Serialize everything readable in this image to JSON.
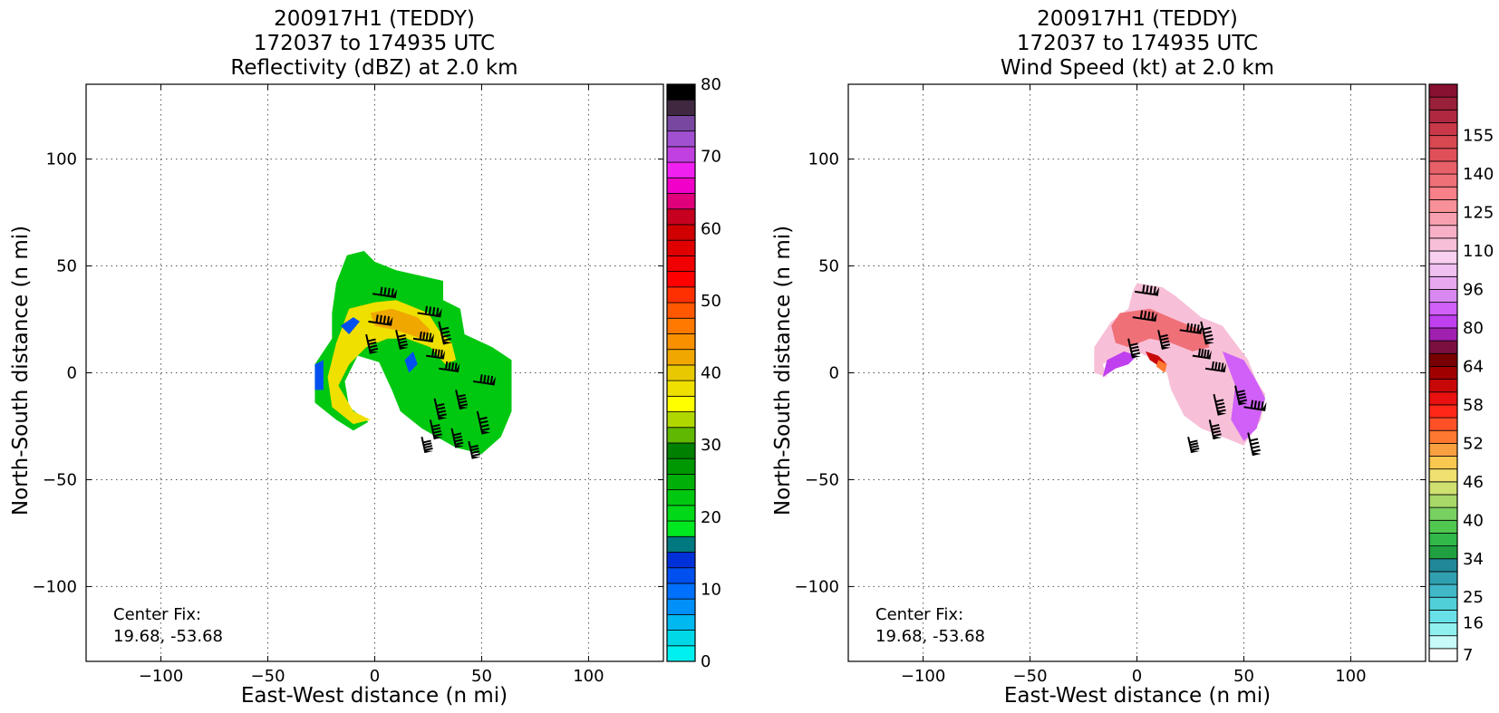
{
  "chart_data": [
    {
      "type": "heatmap",
      "title": [
        "200917H1 (TEDDY)",
        "172037 to 174935 UTC",
        "Reflectivity (dBZ) at 2.0 km"
      ],
      "xlabel": "East-West distance (n mi)",
      "ylabel": "North-South distance (n mi)",
      "xlim": [
        -135,
        135
      ],
      "ylim": [
        -135,
        135
      ],
      "xticks": [
        -100,
        -50,
        0,
        50,
        100
      ],
      "yticks": [
        -100,
        -50,
        0,
        50,
        100
      ],
      "grid": true,
      "annotation": [
        "Center Fix:",
        "19.68, -53.68"
      ],
      "colorbar": {
        "range": [
          0,
          80
        ],
        "tick_labels": [
          "0",
          "10",
          "20",
          "30",
          "40",
          "50",
          "60",
          "70",
          "80"
        ],
        "colors": [
          "#00f0f0",
          "#00d8e8",
          "#00b8f0",
          "#0090f8",
          "#0070ff",
          "#0050f0",
          "#0030d8",
          "#007880",
          "#00e820",
          "#00d818",
          "#00c810",
          "#00b008",
          "#009800",
          "#008000",
          "#60b800",
          "#b0d800",
          "#ffff00",
          "#f0e000",
          "#e8c800",
          "#f0a800",
          "#f89000",
          "#ff7800",
          "#ff5800",
          "#ff3000",
          "#ff0000",
          "#f00000",
          "#e00000",
          "#d00000",
          "#c80020",
          "#e0007a",
          "#f000c8",
          "#f020f0",
          "#c040e0",
          "#a050d0",
          "#7848a0",
          "#402840",
          "#000000"
        ]
      },
      "wind_barbs": true
    },
    {
      "type": "heatmap",
      "title": [
        "200917H1 (TEDDY)",
        "172037 to 174935 UTC",
        "Wind Speed (kt) at 2.0 km"
      ],
      "xlabel": "East-West distance (n mi)",
      "ylabel": "North-South distance (n mi)",
      "xlim": [
        -135,
        135
      ],
      "ylim": [
        -135,
        135
      ],
      "xticks": [
        -100,
        -50,
        0,
        50,
        100
      ],
      "yticks": [
        -100,
        -50,
        0,
        50,
        100
      ],
      "grid": true,
      "annotation": [
        "Center Fix:",
        "19.68, -53.68"
      ],
      "colorbar": {
        "tick_labels": [
          "7",
          "16",
          "25",
          "34",
          "40",
          "46",
          "52",
          "58",
          "64",
          "80",
          "96",
          "110",
          "125",
          "140",
          "155"
        ],
        "tick_levels": [
          0.5,
          3,
          5,
          8,
          11,
          14,
          17,
          20,
          23,
          26,
          29,
          32,
          35,
          38,
          41
        ],
        "n_levels": 45,
        "colors": [
          "#ffffff",
          "#c8fafa",
          "#90f0f0",
          "#68e0e8",
          "#50cfd8",
          "#40b8c8",
          "#30a0b0",
          "#208898",
          "#20a040",
          "#30b848",
          "#50c850",
          "#78d060",
          "#a8d868",
          "#d0e070",
          "#f0e070",
          "#f8c850",
          "#f8a040",
          "#ff7830",
          "#ff5028",
          "#ff2818",
          "#e81010",
          "#c80808",
          "#a00000",
          "#780000",
          "#7a1040",
          "#a020b0",
          "#c040f0",
          "#d060f8",
          "#d888f0",
          "#e8a8f0",
          "#f0c0f0",
          "#f8d0f0",
          "#f8c0d8",
          "#f8b0c8",
          "#f8a0b0",
          "#f89098",
          "#f88088",
          "#f07078",
          "#e86068",
          "#e05058",
          "#d84850",
          "#c83848",
          "#b02840",
          "#982038",
          "#881030"
        ]
      },
      "wind_barbs": true
    }
  ]
}
